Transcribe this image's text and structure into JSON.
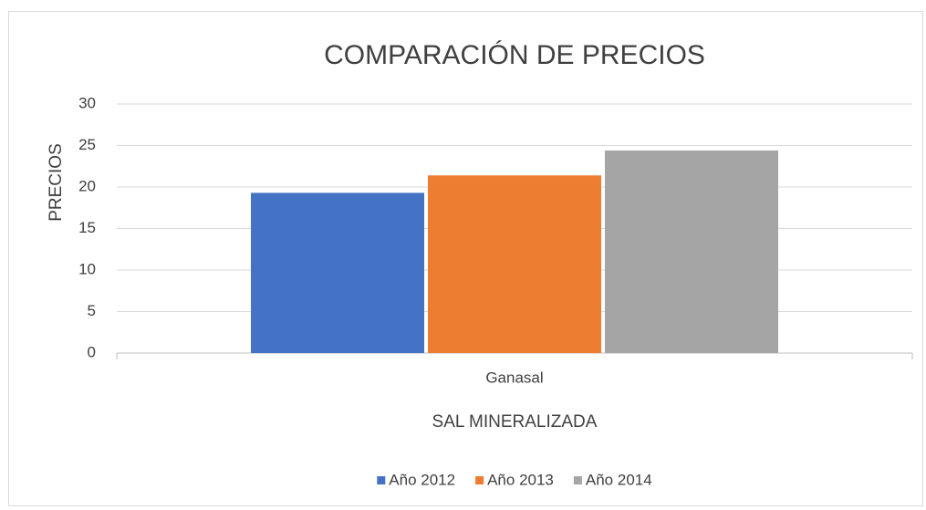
{
  "chart_data": {
    "type": "bar",
    "title": "COMPARACIÓN DE PRECIOS",
    "x_label": "SAL MINERALIZADA",
    "y_label": "PRECIOS",
    "categories": [
      "Ganasal"
    ],
    "series": [
      {
        "name": "Año 2012",
        "color": "#4472c4",
        "values": [
          19.3
        ]
      },
      {
        "name": "Año 2013",
        "color": "#ed7d31",
        "values": [
          21.4
        ]
      },
      {
        "name": "Año 2014",
        "color": "#a5a5a5",
        "values": [
          24.4
        ]
      }
    ],
    "ylim": [
      0,
      30
    ],
    "yticks": [
      0,
      5,
      10,
      15,
      20,
      25,
      30
    ],
    "grid": true,
    "legend": "bottom"
  }
}
